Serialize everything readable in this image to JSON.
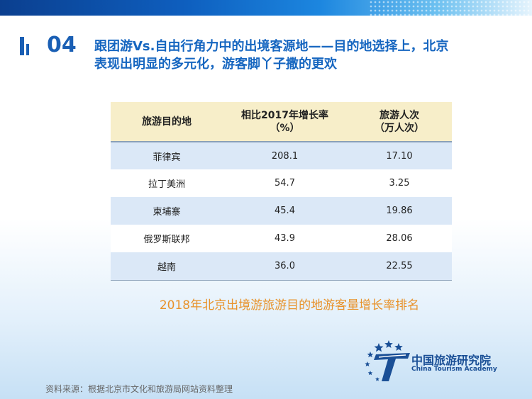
{
  "header": {
    "section_number": "04",
    "title_line1": "跟团游Vs.自由行角力中的出境客源地——目的地选择上，北京",
    "title_line2": "表现出明显的多元化，游客脚丫子撒的更欢"
  },
  "table": {
    "headers": {
      "destination": "旅游目的地",
      "growth_line1": "相比2017年增长率",
      "growth_line2": "（%）",
      "visits_line1": "旅游人次",
      "visits_line2": "（万人次）"
    },
    "rows": [
      {
        "destination": "菲律宾",
        "growth": "208.1",
        "visits": "17.10"
      },
      {
        "destination": "拉丁美洲",
        "growth": "54.7",
        "visits": "3.25"
      },
      {
        "destination": "柬埔寨",
        "growth": "45.4",
        "visits": "19.86"
      },
      {
        "destination": "俄罗斯联邦",
        "growth": "43.9",
        "visits": "28.06"
      },
      {
        "destination": "越南",
        "growth": "36.0",
        "visits": "22.55"
      }
    ]
  },
  "caption": "2018年北京出境游旅游目的地游客量增长率排名",
  "logo": {
    "name_cn": "中国旅游研究院",
    "name_en": "China Tourism Academy"
  },
  "source_note": "资料来源：根据北京市文化和旅游局网站资料整理",
  "colors": {
    "title_blue": "#1666c0",
    "caption_orange": "#e8922a",
    "header_fill": "#f7eec9",
    "stripe_fill": "#dbe8f7"
  }
}
